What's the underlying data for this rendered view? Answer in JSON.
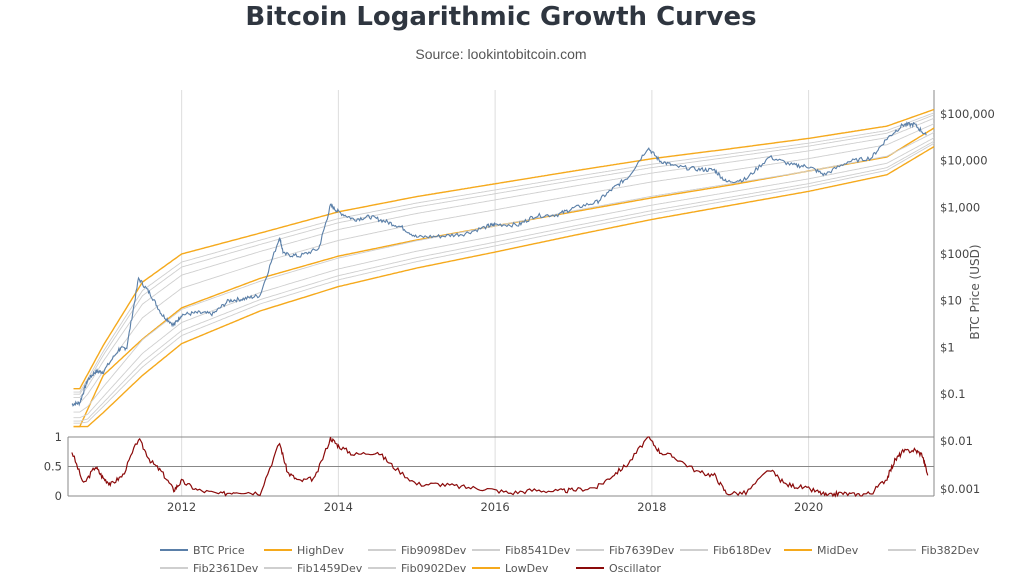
{
  "header": {
    "title": "Bitcoin Logarithmic Growth Curves",
    "subtitle": "Source: lookintobitcoin.com"
  },
  "colors": {
    "btc": "#5a7fa8",
    "band_gold": "#f5a91c",
    "fib": "#cfcfcf",
    "oscillator": "#8b0a0a",
    "grid": "#dddddd"
  },
  "chart_data": [
    {
      "type": "line",
      "title": "Bitcoin Logarithmic Growth Curves",
      "xlabel": "",
      "ylabel": "BTC Price (USD)",
      "yscale": "log",
      "xlim": [
        2010.55,
        2021.6
      ],
      "ylim": [
        0.02,
        150000
      ],
      "grid": true,
      "x_ticks": [
        "2012",
        "2014",
        "2016",
        "2018",
        "2020"
      ],
      "y_ticks": [
        "$100,000",
        "$10,000",
        "$1,000",
        "$100",
        "$10",
        "$1",
        "$0.1"
      ],
      "bands": {
        "HighDev": [
          [
            2010.7,
            0.13
          ],
          [
            2011.0,
            1.1
          ],
          [
            2011.5,
            25
          ],
          [
            2012,
            100
          ],
          [
            2013,
            280
          ],
          [
            2014,
            800
          ],
          [
            2015,
            1700
          ],
          [
            2016,
            3200
          ],
          [
            2017,
            6000
          ],
          [
            2018,
            11000
          ],
          [
            2019,
            18000
          ],
          [
            2020,
            30000
          ],
          [
            2021,
            55000
          ],
          [
            2021.6,
            125000
          ]
        ],
        "MidDev": [
          [
            2010.7,
            0.02
          ],
          [
            2011.0,
            0.25
          ],
          [
            2011.5,
            1.5
          ],
          [
            2012,
            7
          ],
          [
            2013,
            30
          ],
          [
            2014,
            90
          ],
          [
            2015,
            200
          ],
          [
            2016,
            400
          ],
          [
            2017,
            800
          ],
          [
            2018,
            1600
          ],
          [
            2019,
            3000
          ],
          [
            2020,
            6000
          ],
          [
            2021,
            12000
          ],
          [
            2021.6,
            50000
          ]
        ],
        "LowDev": [
          [
            2010.8,
            0.02
          ],
          [
            2011.0,
            0.04
          ],
          [
            2011.5,
            0.25
          ],
          [
            2012,
            1.2
          ],
          [
            2013,
            6
          ],
          [
            2014,
            20
          ],
          [
            2015,
            50
          ],
          [
            2016,
            110
          ],
          [
            2017,
            250
          ],
          [
            2018,
            550
          ],
          [
            2019,
            1100
          ],
          [
            2020,
            2200
          ],
          [
            2021,
            5000
          ],
          [
            2021.6,
            20000
          ]
        ]
      },
      "series": [
        {
          "name": "BTC Price",
          "values": [
            [
              2010.6,
              0.06
            ],
            [
              2010.7,
              0.065
            ],
            [
              2010.8,
              0.2
            ],
            [
              2010.9,
              0.3
            ],
            [
              2011.0,
              0.3
            ],
            [
              2011.2,
              0.9
            ],
            [
              2011.3,
              1.0
            ],
            [
              2011.45,
              30
            ],
            [
              2011.6,
              14
            ],
            [
              2011.75,
              5
            ],
            [
              2011.9,
              3
            ],
            [
              2012.0,
              5
            ],
            [
              2012.2,
              5.5
            ],
            [
              2012.4,
              5.2
            ],
            [
              2012.6,
              10
            ],
            [
              2012.8,
              11
            ],
            [
              2013.0,
              13
            ],
            [
              2013.25,
              230
            ],
            [
              2013.3,
              100
            ],
            [
              2013.5,
              90
            ],
            [
              2013.75,
              130
            ],
            [
              2013.9,
              1100
            ],
            [
              2014.0,
              800
            ],
            [
              2014.2,
              550
            ],
            [
              2014.4,
              630
            ],
            [
              2014.6,
              500
            ],
            [
              2014.8,
              380
            ],
            [
              2015.0,
              230
            ],
            [
              2015.3,
              240
            ],
            [
              2015.6,
              270
            ],
            [
              2015.9,
              390
            ],
            [
              2016.0,
              430
            ],
            [
              2016.3,
              420
            ],
            [
              2016.5,
              650
            ],
            [
              2016.8,
              700
            ],
            [
              2017.0,
              960
            ],
            [
              2017.3,
              1300
            ],
            [
              2017.5,
              2500
            ],
            [
              2017.7,
              4500
            ],
            [
              2017.95,
              19000
            ],
            [
              2018.1,
              10000
            ],
            [
              2018.3,
              7500
            ],
            [
              2018.6,
              6500
            ],
            [
              2018.8,
              6300
            ],
            [
              2018.95,
              3500
            ],
            [
              2019.2,
              4000
            ],
            [
              2019.5,
              12000
            ],
            [
              2019.8,
              8000
            ],
            [
              2020.0,
              7500
            ],
            [
              2020.2,
              5000
            ],
            [
              2020.5,
              9500
            ],
            [
              2020.8,
              11500
            ],
            [
              2021.0,
              30000
            ],
            [
              2021.2,
              58000
            ],
            [
              2021.35,
              60000
            ],
            [
              2021.5,
              35000
            ]
          ]
        },
        {
          "name": "HighDev"
        },
        {
          "name": "Fib9098Dev"
        },
        {
          "name": "Fib8541Dev"
        },
        {
          "name": "Fib7639Dev"
        },
        {
          "name": "Fib618Dev"
        },
        {
          "name": "MidDev"
        },
        {
          "name": "Fib382Dev"
        },
        {
          "name": "Fib2361Dev"
        },
        {
          "name": "Fib1459Dev"
        },
        {
          "name": "Fib0902Dev"
        },
        {
          "name": "LowDev"
        }
      ]
    },
    {
      "type": "line",
      "title": "",
      "xlabel": "",
      "ylabel": "",
      "xlim": [
        2010.55,
        2021.6
      ],
      "ylim": [
        0,
        1
      ],
      "left_ticks": [
        "1",
        "0.5",
        "0"
      ],
      "right_ticks": [
        "$0.01",
        "$0.001"
      ],
      "series": [
        {
          "name": "Oscillator",
          "values": [
            [
              2010.6,
              0.75
            ],
            [
              2010.75,
              0.2
            ],
            [
              2010.9,
              0.5
            ],
            [
              2011.0,
              0.3
            ],
            [
              2011.1,
              0.2
            ],
            [
              2011.25,
              0.35
            ],
            [
              2011.45,
              0.97
            ],
            [
              2011.6,
              0.6
            ],
            [
              2011.75,
              0.4
            ],
            [
              2011.9,
              0.1
            ],
            [
              2012.0,
              0.25
            ],
            [
              2012.2,
              0.1
            ],
            [
              2012.5,
              0.03
            ],
            [
              2012.7,
              0.08
            ],
            [
              2013.0,
              0.05
            ],
            [
              2013.25,
              0.9
            ],
            [
              2013.35,
              0.4
            ],
            [
              2013.5,
              0.25
            ],
            [
              2013.7,
              0.3
            ],
            [
              2013.9,
              0.98
            ],
            [
              2014.0,
              0.85
            ],
            [
              2014.2,
              0.7
            ],
            [
              2014.5,
              0.75
            ],
            [
              2014.7,
              0.5
            ],
            [
              2015.0,
              0.2
            ],
            [
              2015.3,
              0.2
            ],
            [
              2015.6,
              0.15
            ],
            [
              2015.9,
              0.12
            ],
            [
              2016.2,
              0.05
            ],
            [
              2016.5,
              0.1
            ],
            [
              2016.8,
              0.08
            ],
            [
              2017.0,
              0.1
            ],
            [
              2017.3,
              0.15
            ],
            [
              2017.5,
              0.35
            ],
            [
              2017.7,
              0.55
            ],
            [
              2017.95,
              1.0
            ],
            [
              2018.1,
              0.75
            ],
            [
              2018.3,
              0.65
            ],
            [
              2018.6,
              0.4
            ],
            [
              2018.8,
              0.35
            ],
            [
              2018.95,
              0.05
            ],
            [
              2019.2,
              0.05
            ],
            [
              2019.5,
              0.45
            ],
            [
              2019.7,
              0.2
            ],
            [
              2019.9,
              0.15
            ],
            [
              2020.1,
              0.08
            ],
            [
              2020.25,
              0.0
            ],
            [
              2020.4,
              0.05
            ],
            [
              2020.6,
              0.02
            ],
            [
              2020.8,
              0.05
            ],
            [
              2021.0,
              0.3
            ],
            [
              2021.1,
              0.6
            ],
            [
              2021.2,
              0.75
            ],
            [
              2021.35,
              0.78
            ],
            [
              2021.45,
              0.7
            ],
            [
              2021.52,
              0.35
            ]
          ]
        }
      ]
    }
  ]
}
